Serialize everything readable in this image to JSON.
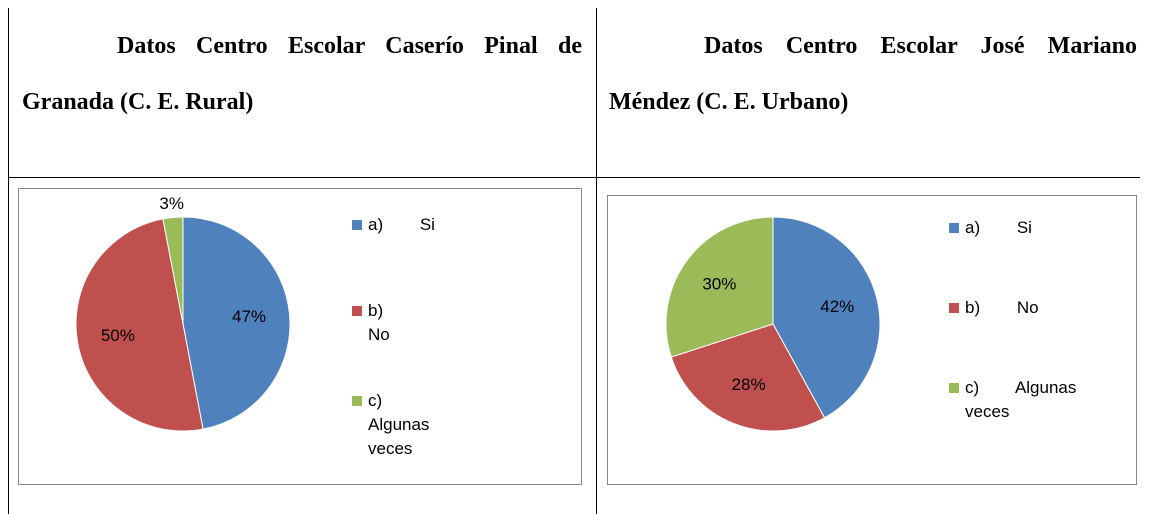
{
  "headers": [
    "Datos Centro Escolar Caserío Pinal de Granada (C. E. Rural)",
    "Datos Centro Escolar José Mariano Méndez (C. E. Urbano)"
  ],
  "chart_data": [
    {
      "type": "pie",
      "categories": [
        "a) Si",
        "b) No",
        "c) Algunas veces"
      ],
      "values": [
        47,
        50,
        3
      ],
      "value_labels": [
        "47%",
        "50%",
        "3%"
      ],
      "colors": [
        "#4f81bd",
        "#c0504d",
        "#9bbb59"
      ],
      "legend": "right"
    },
    {
      "type": "pie",
      "categories": [
        "a) Si",
        "b) No",
        "c) Algunas veces"
      ],
      "values": [
        42,
        28,
        30
      ],
      "value_labels": [
        "42%",
        "28%",
        "30%"
      ],
      "colors": [
        "#4f81bd",
        "#c0504d",
        "#9bbb59"
      ],
      "legend": "right"
    }
  ]
}
